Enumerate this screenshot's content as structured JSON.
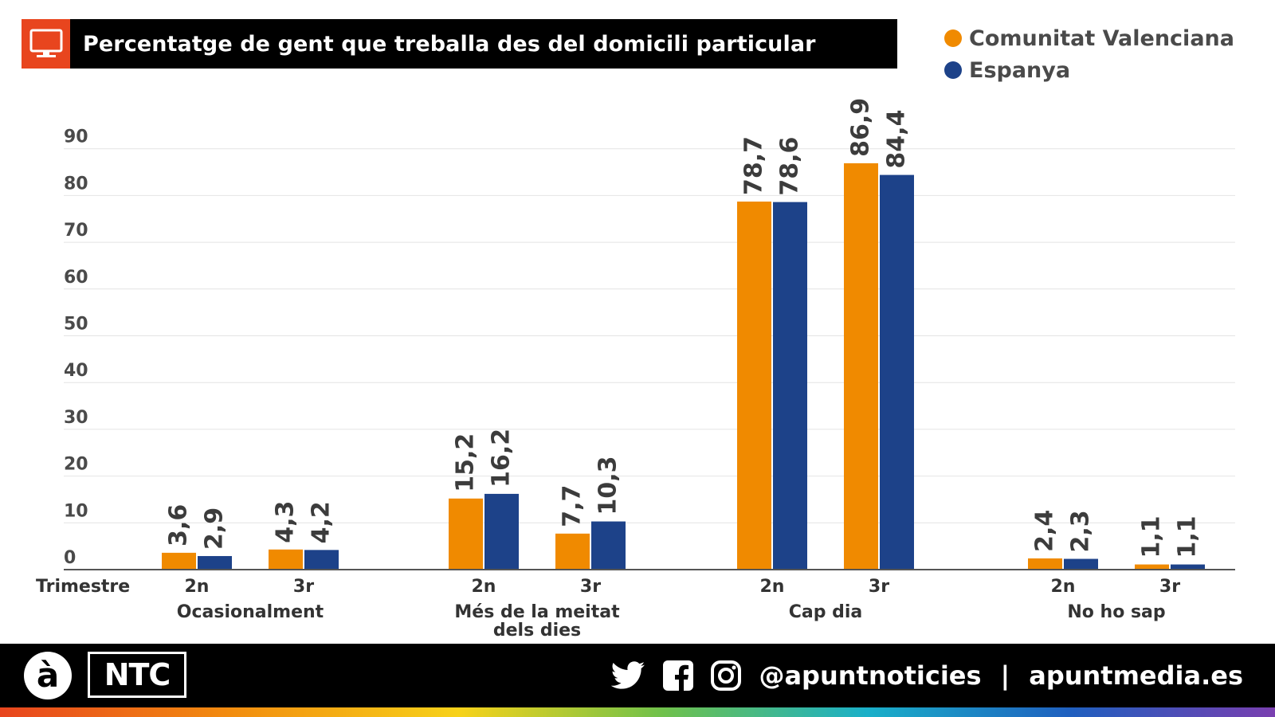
{
  "header": {
    "title": "Percentatge de gent que treballa des del domicili particular",
    "icon": "computer-monitor-icon"
  },
  "colors": {
    "series1": "#f08a00",
    "series2": "#1d4289",
    "icon_box": "#e8451e"
  },
  "chart_data": {
    "type": "bar",
    "title": "Percentatge de gent que treballa des del domicili particular",
    "x_axis_label": "Trimestre",
    "groups": [
      {
        "label": "Ocasionalment",
        "categories": [
          "2n",
          "3r"
        ]
      },
      {
        "label": "Més de la meitat dels dies",
        "label_lines": [
          "Més de la meitat",
          "dels dies"
        ],
        "categories": [
          "2n",
          "3r"
        ]
      },
      {
        "label": "Cap dia",
        "categories": [
          "2n",
          "3r"
        ]
      },
      {
        "label": "No ho sap",
        "categories": [
          "2n",
          "3r"
        ]
      }
    ],
    "series": [
      {
        "name": "Comunitat Valenciana",
        "color": "#f08a00",
        "values": [
          3.6,
          4.3,
          15.2,
          7.7,
          78.7,
          86.9,
          2.4,
          1.1
        ],
        "labels": [
          "3,6",
          "4,3",
          "15,2",
          "7,7",
          "78,7",
          "86,9",
          "2,4",
          "1,1"
        ]
      },
      {
        "name": "Espanya",
        "color": "#1d4289",
        "values": [
          2.9,
          4.2,
          16.2,
          10.3,
          78.6,
          84.4,
          2.3,
          1.1
        ],
        "labels": [
          "2,9",
          "4,2",
          "16,2",
          "10,3",
          "78,6",
          "84,4",
          "2,3",
          "1,1"
        ]
      }
    ],
    "y_ticks": [
      0,
      10,
      20,
      30,
      40,
      50,
      60,
      70,
      80,
      90
    ],
    "ylim": [
      0,
      90
    ],
    "grid": true,
    "legend_position": "top-right"
  },
  "footer": {
    "logo_letter": "à",
    "brand": "NTC",
    "handle": "@apuntnoticies",
    "separator": "|",
    "website": "apuntmedia.es",
    "icons": [
      "twitter-icon",
      "facebook-icon",
      "instagram-icon"
    ]
  }
}
